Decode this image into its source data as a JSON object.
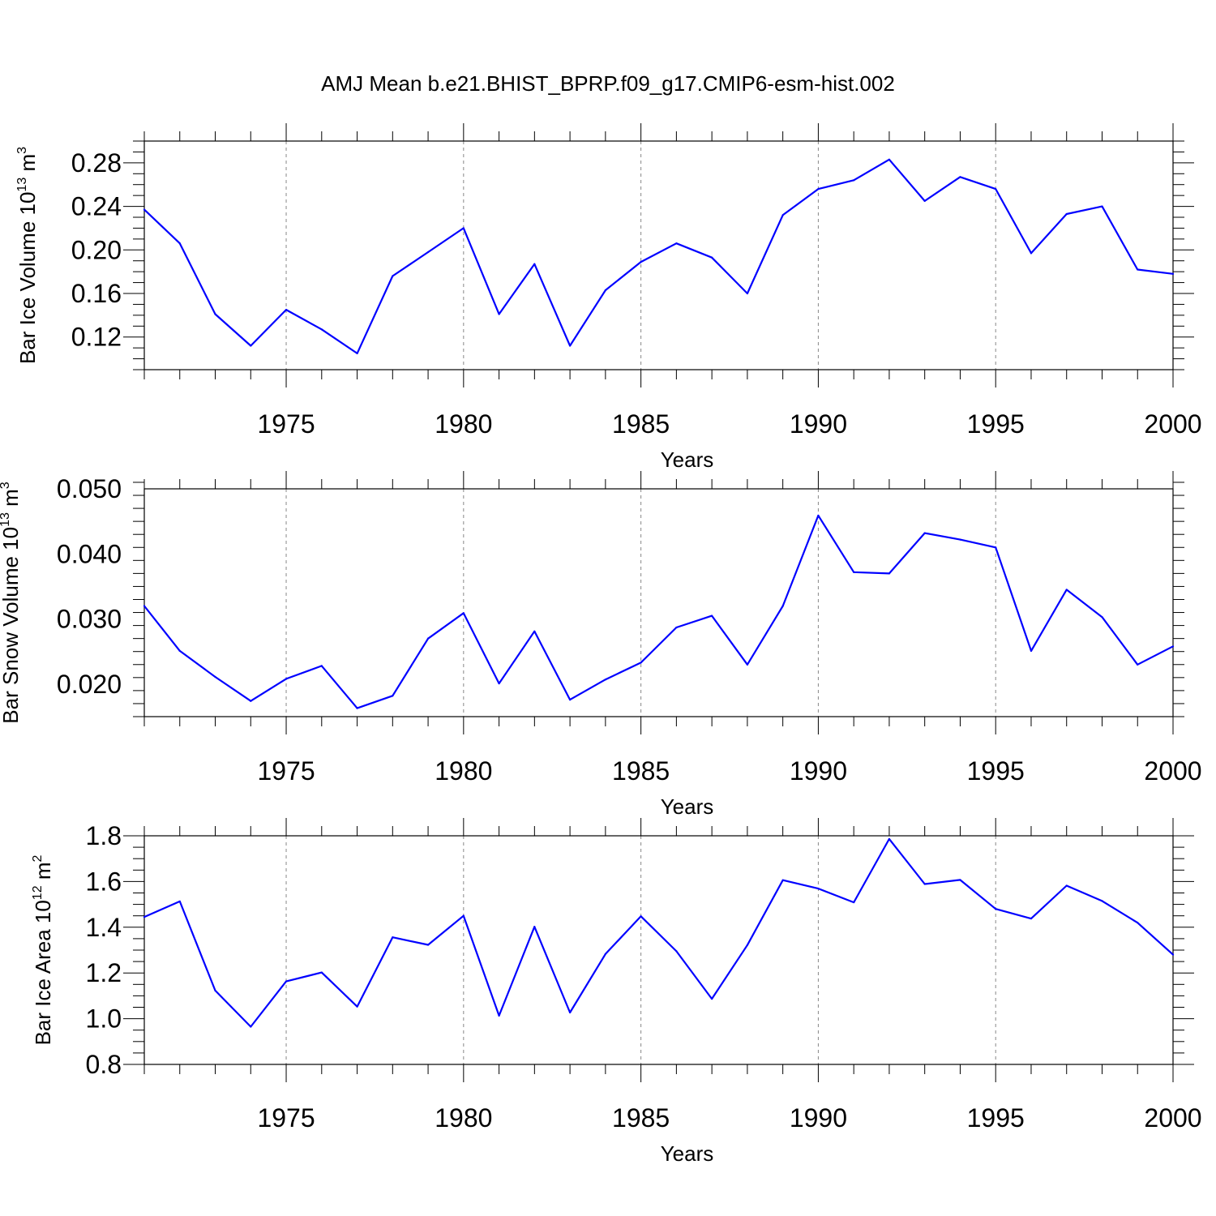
{
  "title": "AMJ Mean b.e21.BHIST_BPRP.f09_g17.CMIP6-esm-hist.002",
  "chart_data": [
    {
      "type": "line",
      "title": "",
      "xlabel": "Years",
      "ylabel": {
        "base": "Bar Ice Volume 10",
        "exp": "13",
        "unit": " m",
        "unit_exp": "3"
      },
      "xlim": [
        1971,
        2000
      ],
      "ylim": [
        0.09,
        0.3
      ],
      "x_ticks": [
        1975,
        1980,
        1985,
        1990,
        1995,
        2000
      ],
      "y_ticks": [
        0.12,
        0.16,
        0.2,
        0.24,
        0.28
      ],
      "y_tick_labels": [
        "0.12",
        "0.16",
        "0.20",
        "0.24",
        "0.28"
      ],
      "y_minor_step": 0.01,
      "x_minor_step": 1,
      "grid": "vertical dashed",
      "color": "#0000ff",
      "x": [
        1971,
        1972,
        1973,
        1974,
        1975,
        1976,
        1977,
        1978,
        1979,
        1980,
        1981,
        1982,
        1983,
        1984,
        1985,
        1986,
        1987,
        1988,
        1989,
        1990,
        1991,
        1992,
        1993,
        1994,
        1995,
        1996,
        1997,
        1998,
        1999,
        2000
      ],
      "values": [
        0.237,
        0.206,
        0.141,
        0.112,
        0.145,
        0.127,
        0.105,
        0.176,
        0.198,
        0.22,
        0.141,
        0.187,
        0.112,
        0.163,
        0.189,
        0.206,
        0.193,
        0.16,
        0.232,
        0.256,
        0.264,
        0.283,
        0.245,
        0.267,
        0.256,
        0.197,
        0.233,
        0.24,
        0.182,
        0.178
      ]
    },
    {
      "type": "line",
      "title": "",
      "xlabel": "Years",
      "ylabel": {
        "base": "Bar Snow Volume 10",
        "exp": "13",
        "unit": " m",
        "unit_exp": "3"
      },
      "xlim": [
        1971,
        2000
      ],
      "ylim": [
        0.015,
        0.05
      ],
      "x_ticks": [
        1975,
        1980,
        1985,
        1990,
        1995,
        2000
      ],
      "y_ticks": [
        0.02,
        0.03,
        0.04,
        0.05
      ],
      "y_tick_labels": [
        "0.020",
        "0.030",
        "0.040",
        "0.050"
      ],
      "y_minor_step": 0.002,
      "x_minor_step": 1,
      "grid": "vertical dashed",
      "color": "#0000ff",
      "x": [
        1971,
        1972,
        1973,
        1974,
        1975,
        1976,
        1977,
        1978,
        1979,
        1980,
        1981,
        1982,
        1983,
        1984,
        1985,
        1986,
        1987,
        1988,
        1989,
        1990,
        1991,
        1992,
        1993,
        1994,
        1995,
        1996,
        1997,
        1998,
        1999,
        2000
      ],
      "values": [
        0.032,
        0.0251,
        0.0211,
        0.0174,
        0.0208,
        0.0228,
        0.0163,
        0.0182,
        0.027,
        0.0309,
        0.0201,
        0.0281,
        0.0176,
        0.0207,
        0.0233,
        0.0287,
        0.0305,
        0.023,
        0.032,
        0.0459,
        0.0372,
        0.037,
        0.0432,
        0.0422,
        0.041,
        0.0251,
        0.0345,
        0.0303,
        0.023,
        0.0258
      ]
    },
    {
      "type": "line",
      "title": "",
      "xlabel": "Years",
      "ylabel": {
        "base": "Bar Ice Area 10",
        "exp": "12",
        "unit": " m",
        "unit_exp": "2"
      },
      "xlim": [
        1971,
        2000
      ],
      "ylim": [
        0.8,
        1.8
      ],
      "x_ticks": [
        1975,
        1980,
        1985,
        1990,
        1995,
        2000
      ],
      "y_ticks": [
        0.8,
        1.0,
        1.2,
        1.4,
        1.6,
        1.8
      ],
      "y_tick_labels": [
        "0.8",
        "1.0",
        "1.2",
        "1.4",
        "1.6",
        "1.8"
      ],
      "y_minor_step": 0.05,
      "x_minor_step": 1,
      "grid": "vertical dashed",
      "color": "#0000ff",
      "x": [
        1971,
        1972,
        1973,
        1974,
        1975,
        1976,
        1977,
        1978,
        1979,
        1980,
        1981,
        1982,
        1983,
        1984,
        1985,
        1986,
        1987,
        1988,
        1989,
        1990,
        1991,
        1992,
        1993,
        1994,
        1995,
        1996,
        1997,
        1998,
        1999,
        2000
      ],
      "values": [
        1.445,
        1.513,
        1.123,
        0.965,
        1.163,
        1.202,
        1.053,
        1.356,
        1.323,
        1.45,
        1.013,
        1.402,
        1.027,
        1.283,
        1.448,
        1.295,
        1.087,
        1.322,
        1.606,
        1.569,
        1.509,
        1.786,
        1.589,
        1.607,
        1.48,
        1.438,
        1.582,
        1.515,
        1.42,
        1.28
      ]
    }
  ]
}
